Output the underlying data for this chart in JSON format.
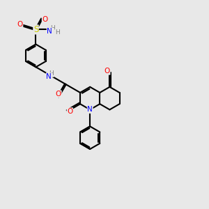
{
  "bg_color": "#e8e8e8",
  "atom_colors": {
    "C": "#000000",
    "N": "#0000ff",
    "O": "#ff0000",
    "S": "#cccc00",
    "H": "#808080"
  },
  "bond_color": "#000000",
  "bond_width": 1.5,
  "figsize": [
    3.0,
    3.0
  ],
  "dpi": 100
}
